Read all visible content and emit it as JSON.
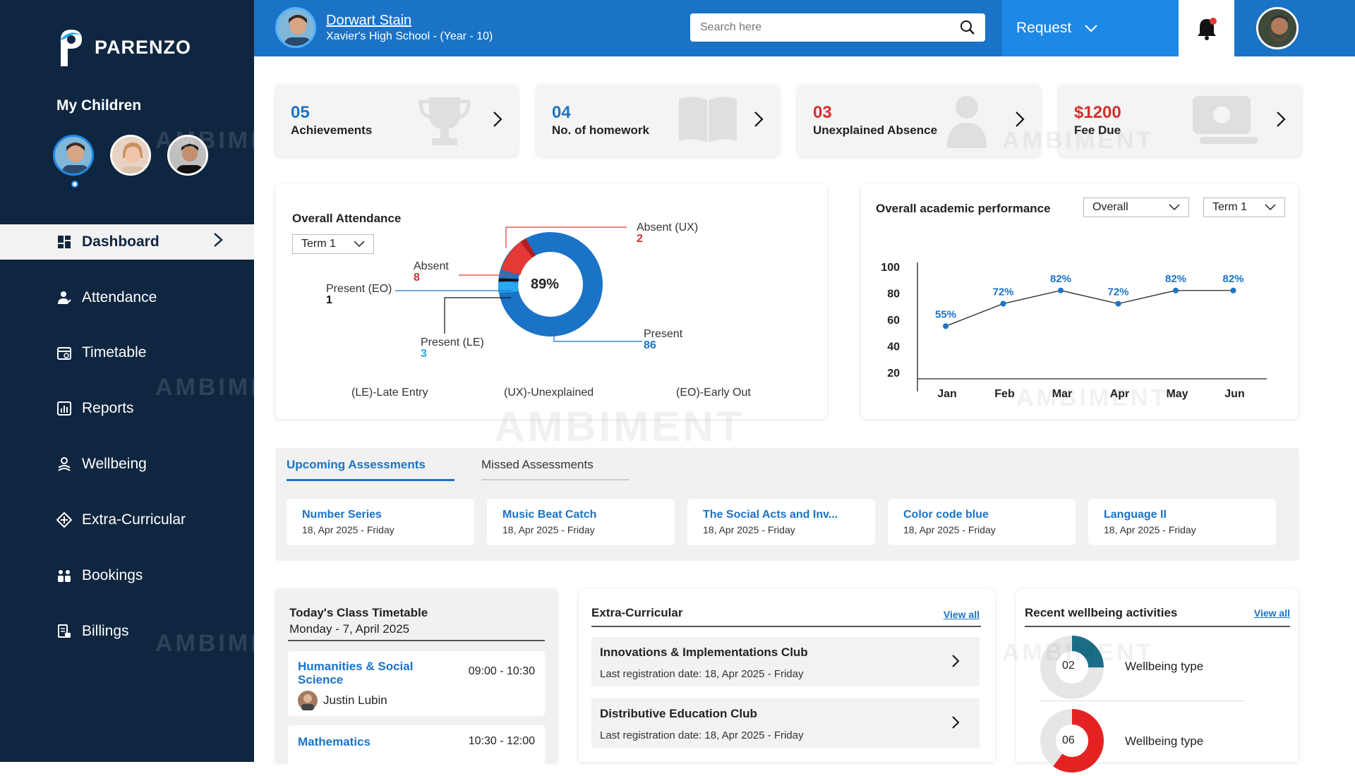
{
  "brand": {
    "name": "PARENZO"
  },
  "sidebar": {
    "my_children": "My Children",
    "items": [
      {
        "label": "Dashboard",
        "icon": "dashboard-icon"
      },
      {
        "label": "Attendance",
        "icon": "attendance-icon"
      },
      {
        "label": "Timetable",
        "icon": "timetable-icon"
      },
      {
        "label": "Reports",
        "icon": "reports-icon"
      },
      {
        "label": "Wellbeing",
        "icon": "wellbeing-icon"
      },
      {
        "label": "Extra-Curricular",
        "icon": "extracurricular-icon"
      },
      {
        "label": "Bookings",
        "icon": "bookings-icon"
      },
      {
        "label": "Billings",
        "icon": "billings-icon"
      }
    ]
  },
  "header": {
    "student_name": "Dorwart Stain",
    "student_school": "Xavier's High School - (Year - 10)",
    "search_placeholder": "Search here",
    "request_label": "Request"
  },
  "stats": [
    {
      "value": "05",
      "label": "Achievements"
    },
    {
      "value": "04",
      "label": "No. of homework"
    },
    {
      "value": "03",
      "label": "Unexplained Absence"
    },
    {
      "value": "$1200",
      "label": "Fee Due"
    }
  ],
  "attendance": {
    "title": "Overall Attendance",
    "term": "Term 1",
    "center": "89%",
    "labels": {
      "absent_ux": "Absent (UX)",
      "absent_ux_v": "2",
      "absent": "Absent",
      "absent_v": "8",
      "present_eo": "Present (EO)",
      "present_eo_v": "1",
      "present_le": "Present (LE)",
      "present_le_v": "3",
      "present": "Present",
      "present_v": "86"
    },
    "legend": [
      "(LE)-Late Entry",
      "(UX)-Unexplained",
      "(EO)-Early Out"
    ],
    "colors": {
      "present": "#1a73c7",
      "absent": "#e53935",
      "late": "#29a8f0",
      "ux": "#c62828",
      "eo": "#111111"
    }
  },
  "performance": {
    "title": "Overall academic performance",
    "filter1": "Overall",
    "filter2": "Term 1"
  },
  "chart_data": {
    "type": "line",
    "categories": [
      "Jan",
      "Feb",
      "Mar",
      "Apr",
      "May",
      "Jun"
    ],
    "values": [
      55,
      72,
      82,
      72,
      82,
      82
    ],
    "data_labels": [
      "55%",
      "72%",
      "82%",
      "72%",
      "82%",
      "82%"
    ],
    "yticks": [
      "100",
      "80",
      "60",
      "40",
      "20"
    ],
    "ylim": [
      20,
      100
    ],
    "color": "#1a73c7"
  },
  "assessments": {
    "tab_upcoming": "Upcoming Assessments",
    "tab_missed": "Missed Assessments",
    "items": [
      {
        "title": "Number Series",
        "date": "18, Apr 2025 - Friday"
      },
      {
        "title": "Music Beat Catch",
        "date": "18, Apr 2025 - Friday"
      },
      {
        "title": "The Social Acts and Inv...",
        "date": "18, Apr 2025 - Friday"
      },
      {
        "title": "Color code blue",
        "date": "18, Apr 2025 - Friday"
      },
      {
        "title": "Language II",
        "date": "18, Apr 2025 - Friday"
      }
    ]
  },
  "timetable": {
    "title": "Today's Class Timetable",
    "date": "Monday - 7, April 2025",
    "classes": [
      {
        "subject": "Humanities & Social Science",
        "time": "09:00 - 10:30",
        "teacher": "Justin Lubin"
      },
      {
        "subject": "Mathematics",
        "time": "10:30 - 12:00"
      }
    ]
  },
  "extracurricular": {
    "title": "Extra-Curricular",
    "view_all": "View all",
    "clubs": [
      {
        "name": "Innovations & Implementations Club",
        "reg": "Last registration date: 18, Apr 2025 - Friday"
      },
      {
        "name": "Distributive Education Club",
        "reg": "Last registration date: 18, Apr 2025 - Friday"
      }
    ]
  },
  "wellbeing": {
    "title": "Recent wellbeing activities",
    "view_all": "View all",
    "items": [
      {
        "count": "02",
        "label": "Wellbeing type",
        "fraction": 0.25,
        "color": "#1b6e86"
      },
      {
        "count": "06",
        "label": "Wellbeing type",
        "fraction": 0.6,
        "color": "#e52222"
      }
    ]
  },
  "watermark": "AMBIMENT"
}
